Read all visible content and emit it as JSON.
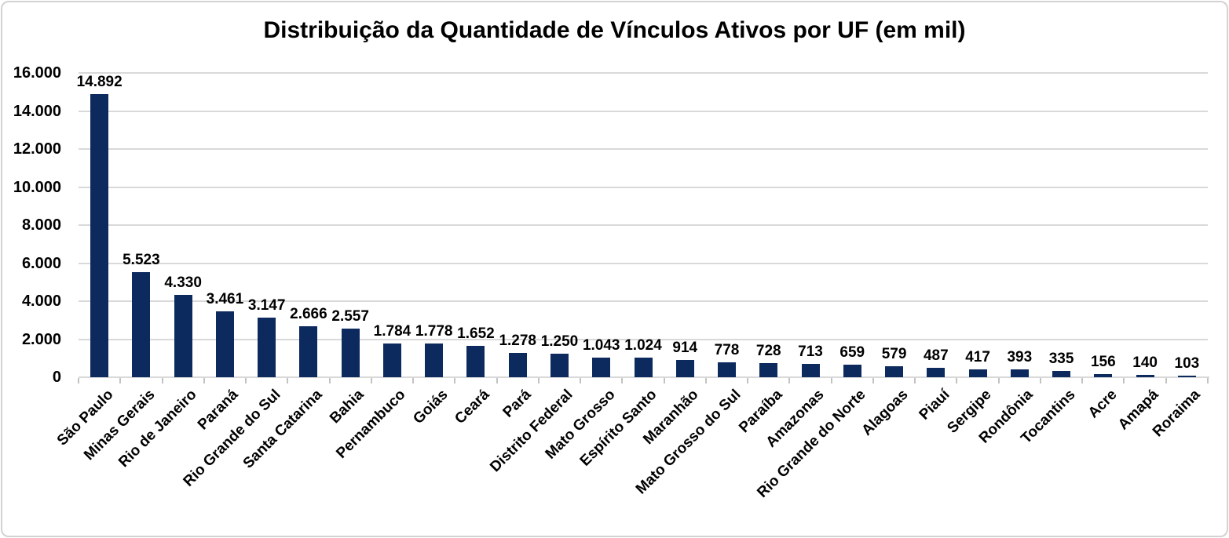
{
  "chart_data": {
    "type": "bar",
    "title": "Distribuição da Quantidade de Vínculos Ativos por UF (em mil)",
    "xlabel": "",
    "ylabel": "",
    "categories": [
      "São Paulo",
      "Minas Gerais",
      "Rio de Janeiro",
      "Paraná",
      "Rio Grande do Sul",
      "Santa Catarina",
      "Bahia",
      "Pernambuco",
      "Goiás",
      "Ceará",
      "Pará",
      "Distrito Federal",
      "Mato Grosso",
      "Espírito Santo",
      "Maranhão",
      "Mato Grosso do Sul",
      "Paraíba",
      "Amazonas",
      "Rio Grande do Norte",
      "Alagoas",
      "Piauí",
      "Sergipe",
      "Rondônia",
      "Tocantins",
      "Acre",
      "Amapá",
      "Roraima"
    ],
    "values": [
      14892,
      5523,
      4330,
      3461,
      3147,
      2666,
      2557,
      1784,
      1778,
      1652,
      1278,
      1250,
      1043,
      1024,
      914,
      778,
      728,
      713,
      659,
      579,
      487,
      417,
      393,
      335,
      156,
      140,
      103
    ],
    "value_labels": [
      "14.892",
      "5.523",
      "4.330",
      "3.461",
      "3.147",
      "2.666",
      "2.557",
      "1.784",
      "1.778",
      "1.652",
      "1.278",
      "1.250",
      "1.043",
      "1.024",
      "914",
      "778",
      "728",
      "713",
      "659",
      "579",
      "487",
      "417",
      "393",
      "335",
      "156",
      "140",
      "103"
    ],
    "y_ticks": {
      "labels": [
        "0",
        "2.000",
        "4.000",
        "6.000",
        "8.000",
        "10.000",
        "12.000",
        "14.000",
        "16.000"
      ],
      "values": [
        0,
        2000,
        4000,
        6000,
        8000,
        10000,
        12000,
        14000,
        16000
      ]
    },
    "ylim": [
      0,
      16000
    ],
    "grid": true,
    "legend_position": "none",
    "colors": {
      "bar": "#0d2a5e",
      "gridline": "#d9d9d9",
      "axis": "#d9d9d9",
      "tick": "#c3c3c3",
      "text": "#000000",
      "frame_border": "#d2d2d2",
      "background": "#ffffff"
    }
  }
}
